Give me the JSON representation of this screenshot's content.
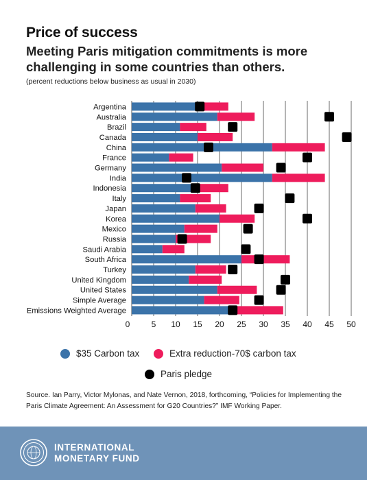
{
  "title": "Price of success",
  "subtitle": "Meeting Paris mitigation commitments is more challenging in some countries than others.",
  "note": "(percent reductions below business as usual in 2030)",
  "colors": {
    "carbon35": "#3b73a9",
    "extra70": "#ee1c5c",
    "pledge": "#000000",
    "footer": "#6f93b8"
  },
  "chart_data": {
    "type": "bar",
    "orientation": "horizontal",
    "stacked": true,
    "categories": [
      "Argentina",
      "Australia",
      "Brazil",
      "Canada",
      "China",
      "France",
      "Germany",
      "India",
      "Indonesia",
      "Italy",
      "Japan",
      "Korea",
      "Mexico",
      "Russia",
      "Saudi Arabia",
      "South Africa",
      "Turkey",
      "United Kingdom",
      "United States",
      "Simple Average",
      "Emissions Weighted Average"
    ],
    "series": [
      {
        "name": "$35 Carbon tax",
        "color": "#3b73a9",
        "values": [
          14.5,
          19.5,
          11,
          15,
          32,
          8.5,
          20.5,
          32,
          14,
          11,
          14.5,
          20,
          12,
          10,
          7,
          25,
          14.5,
          13,
          19.5,
          16.5,
          22
        ]
      },
      {
        "name": "Extra reduction-70$ carbon tax",
        "color": "#ee1c5c",
        "values": [
          7.5,
          8.5,
          6,
          8,
          12,
          5.5,
          9.5,
          12,
          8,
          7,
          7,
          8,
          7.5,
          8,
          5,
          11,
          7,
          7.5,
          9,
          8,
          12.5
        ]
      }
    ],
    "paris_pledge": {
      "name": "Paris pledge",
      "values": [
        15.5,
        45,
        23,
        49,
        17.5,
        40,
        34,
        12.5,
        14.5,
        36,
        29,
        40,
        26.5,
        11.5,
        26,
        29,
        23,
        35,
        34,
        29,
        23
      ]
    },
    "xticks": [
      0,
      5,
      10,
      15,
      20,
      25,
      30,
      35,
      40,
      45,
      50
    ],
    "xlim": [
      0,
      50
    ],
    "grid": true,
    "legend_position": "bottom"
  },
  "legend": {
    "carbon35": "$35 Carbon tax",
    "extra70": "Extra reduction-70$ carbon tax",
    "pledge": "Paris pledge"
  },
  "source": "Source. Ian Parry, Victor Mylonas, and Nate Vernon, 2018, forthcoming, “Policies for Implementing the Paris Climate Agreement: An Assessment for G20 Countries?” IMF Working Paper.",
  "footer": {
    "org_line1": "INTERNATIONAL",
    "org_line2": "MONETARY FUND",
    "logo_icon": "imf-seal-icon"
  }
}
